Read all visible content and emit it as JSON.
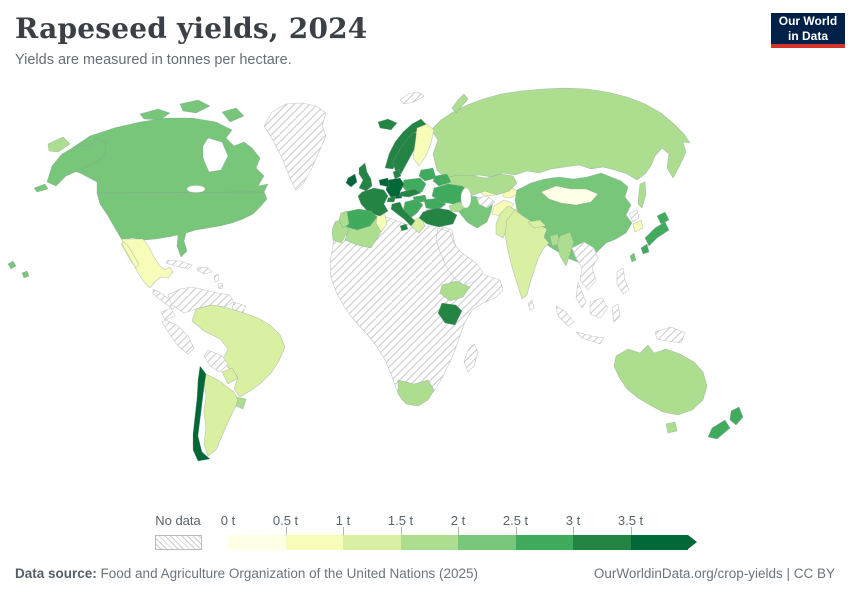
{
  "header": {
    "title": "Rapeseed yields, 2024",
    "subtitle": "Yields are measured in tonnes per hectare.",
    "logo": {
      "line1": "Our World",
      "line2": "in Data",
      "bg_color": "#002147",
      "accent_color": "#d0342c"
    }
  },
  "footer": {
    "source_label": "Data source:",
    "source_text": " Food and Agriculture Organization of the United Nations (2025)",
    "link_text": "OurWorldinData.org/crop-yields | CC BY"
  },
  "chart_data": {
    "type": "choropleth",
    "title": "Rapeseed yields, 2024",
    "unit": "tonnes per hectare",
    "legend": {
      "no_data_label": "No data",
      "bin_labels": [
        "0 t",
        "0.5 t",
        "1 t",
        "1.5 t",
        "2 t",
        "2.5 t",
        "3 t",
        "3.5 t"
      ],
      "bin_ranges": [
        "0–0.5 t",
        "0.5–1 t",
        "1–1.5 t",
        "1.5–2 t",
        "2–2.5 t",
        "2.5–3 t",
        "3–3.5 t",
        "3.5+ t"
      ],
      "colors": [
        "#ffffe5",
        "#f7fcb9",
        "#d9f0a3",
        "#addd8e",
        "#78c679",
        "#41ab5d",
        "#238443",
        "#006837"
      ]
    },
    "countries": {
      "canada": 4,
      "alaska": 4,
      "united-states": 4,
      "hawaii": 4,
      "mexico": 1,
      "brazil": 2,
      "paraguay": 2,
      "argentina": 2,
      "uruguay": 3,
      "chile": 7,
      "iceland": 6,
      "ireland": 7,
      "united-kingdom": 6,
      "norway": 6,
      "sweden": 6,
      "denmark": 6,
      "finland": 1,
      "germany": 7,
      "benelux": 7,
      "france": 6,
      "switzerland": 6,
      "czechia-austria": 6,
      "poland": 5,
      "baltics": 5,
      "belarus": 5,
      "ukraine": 5,
      "hungary": 5,
      "romania": 5,
      "bulgaria": 5,
      "balkans": 5,
      "greece": 2,
      "italy": 6,
      "spain": 5,
      "portugal": 3,
      "turkey": 6,
      "russia": 3,
      "russia-chukotka": 3,
      "novaya-zemlya": 3,
      "sakhalin": 3,
      "kazakhstan": 3,
      "caucasus": 3,
      "mongolia": 0,
      "china": 4,
      "taiwan": 4,
      "japan": 5,
      "south-korea": 1,
      "india": 2,
      "nepal": 2,
      "pakistan": 2,
      "afghanistan": 1,
      "iran": 4,
      "uzbekistan": 1,
      "kyrgyzstan-tajikistan": 1,
      "bangladesh": 3,
      "myanmar": 3,
      "morocco": 3,
      "algeria": 3,
      "tunisia": 1,
      "ethiopia": 3,
      "kenya": 6,
      "south-africa": 3,
      "australia": 3,
      "tasmania": 3,
      "new-zealand": 5
    },
    "no_data_regions": [
      "greenland",
      "svalbard",
      "central-america",
      "cuba",
      "hispaniola",
      "lesser-antilles",
      "colombia-venezuela",
      "guianas",
      "ecuador",
      "peru",
      "bolivia",
      "africa-other",
      "madagascar",
      "middle-east",
      "turkmenistan",
      "north-korea",
      "southeast-asia",
      "malay-peninsula",
      "sri-lanka",
      "sumatra",
      "borneo",
      "java",
      "sulawesi",
      "new-guinea",
      "philippines"
    ]
  }
}
